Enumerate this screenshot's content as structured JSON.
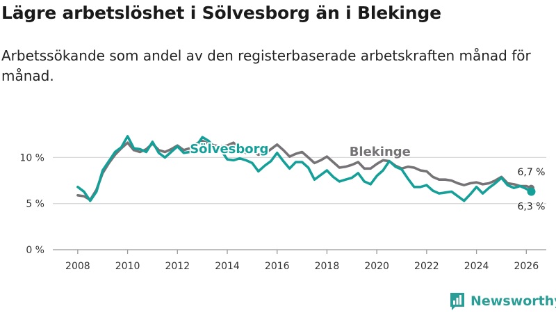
{
  "colors": {
    "solvesborg": "#14a098",
    "blekinge": "#757375",
    "grid": "#d9d9d9",
    "axis": "#999999"
  },
  "brand": {
    "name": "Newsworthy"
  },
  "chart_data": {
    "type": "line",
    "title": "Lägre arbetslöshet i Sölvesborg än i Blekinge",
    "subtitle": "Arbetssökande som andel av den registerbaserade arbetskraften månad för månad.",
    "xlabel": "",
    "ylabel": "",
    "xlim": [
      2007.0,
      2026.8
    ],
    "ylim": [
      0,
      13.5
    ],
    "x_ticks": [
      2008,
      2010,
      2012,
      2014,
      2016,
      2018,
      2020,
      2022,
      2024,
      2026
    ],
    "x_tick_labels": [
      "2008",
      "2010",
      "2012",
      "2014",
      "2016",
      "2018",
      "2020",
      "2022",
      "2024",
      "2026"
    ],
    "y_ticks": [
      0,
      5,
      10
    ],
    "y_tick_labels": [
      "0 %",
      "5 %",
      "10 %"
    ],
    "grid": true,
    "series": [
      {
        "name": "Blekinge",
        "label": "Blekinge",
        "end_label": "6,7 %",
        "x": [
          2008.0,
          2008.25,
          2008.5,
          2008.75,
          2009.0,
          2009.25,
          2009.5,
          2009.75,
          2010.0,
          2010.25,
          2010.5,
          2010.75,
          2011.0,
          2011.25,
          2011.5,
          2011.75,
          2012.0,
          2012.25,
          2012.5,
          2012.75,
          2013.0,
          2013.25,
          2013.5,
          2013.75,
          2014.0,
          2014.25,
          2014.5,
          2014.75,
          2015.0,
          2015.25,
          2015.5,
          2015.75,
          2016.0,
          2016.25,
          2016.5,
          2016.75,
          2017.0,
          2017.25,
          2017.5,
          2017.75,
          2018.0,
          2018.25,
          2018.5,
          2018.75,
          2019.0,
          2019.25,
          2019.5,
          2019.75,
          2020.0,
          2020.25,
          2020.5,
          2020.75,
          2021.0,
          2021.25,
          2021.5,
          2021.75,
          2022.0,
          2022.25,
          2022.5,
          2022.75,
          2023.0,
          2023.25,
          2023.5,
          2023.75,
          2024.0,
          2024.25,
          2024.5,
          2024.75,
          2025.0,
          2025.25,
          2025.5,
          2025.75,
          2026.0,
          2026.2
        ],
        "values": [
          5.9,
          5.8,
          5.4,
          6.5,
          8.3,
          9.4,
          10.3,
          11.0,
          11.6,
          10.8,
          10.6,
          10.9,
          11.5,
          10.8,
          10.6,
          10.9,
          11.3,
          10.8,
          11.0,
          11.5,
          11.8,
          11.5,
          11.3,
          11.2,
          11.3,
          11.6,
          10.9,
          10.5,
          10.7,
          10.3,
          10.4,
          10.9,
          11.4,
          10.8,
          10.1,
          10.4,
          10.6,
          10.0,
          9.4,
          9.7,
          10.1,
          9.5,
          8.9,
          9.0,
          9.2,
          9.5,
          8.8,
          8.8,
          9.3,
          9.7,
          9.6,
          9.1,
          8.8,
          9.0,
          8.9,
          8.6,
          8.5,
          7.9,
          7.6,
          7.6,
          7.5,
          7.2,
          7.0,
          7.2,
          7.3,
          7.1,
          7.2,
          7.5,
          7.9,
          7.2,
          7.1,
          6.9,
          6.9,
          6.7
        ]
      },
      {
        "name": "Sölvesborg",
        "label": "Sölvesborg",
        "end_label": "6,3 %",
        "x": [
          2008.0,
          2008.25,
          2008.5,
          2008.75,
          2009.0,
          2009.25,
          2009.5,
          2009.75,
          2010.0,
          2010.25,
          2010.5,
          2010.75,
          2011.0,
          2011.25,
          2011.5,
          2011.75,
          2012.0,
          2012.25,
          2012.5,
          2012.75,
          2013.0,
          2013.25,
          2013.5,
          2013.75,
          2014.0,
          2014.25,
          2014.5,
          2014.75,
          2015.0,
          2015.25,
          2015.5,
          2015.75,
          2016.0,
          2016.25,
          2016.5,
          2016.75,
          2017.0,
          2017.25,
          2017.5,
          2017.75,
          2018.0,
          2018.25,
          2018.5,
          2018.75,
          2019.0,
          2019.25,
          2019.5,
          2019.75,
          2020.0,
          2020.25,
          2020.5,
          2020.75,
          2021.0,
          2021.25,
          2021.5,
          2021.75,
          2022.0,
          2022.25,
          2022.5,
          2022.75,
          2023.0,
          2023.25,
          2023.5,
          2023.75,
          2024.0,
          2024.25,
          2024.5,
          2024.75,
          2025.0,
          2025.25,
          2025.5,
          2025.75,
          2026.0,
          2026.2
        ],
        "values": [
          6.8,
          6.3,
          5.3,
          6.3,
          8.6,
          9.6,
          10.6,
          11.1,
          12.3,
          11.0,
          10.9,
          10.6,
          11.7,
          10.5,
          10.0,
          10.6,
          11.2,
          10.5,
          10.6,
          11.2,
          12.2,
          11.8,
          11.0,
          10.8,
          9.8,
          9.7,
          9.9,
          9.7,
          9.4,
          8.5,
          9.1,
          9.6,
          10.5,
          9.6,
          8.8,
          9.5,
          9.5,
          8.9,
          7.6,
          8.1,
          8.6,
          7.9,
          7.4,
          7.6,
          7.8,
          8.3,
          7.4,
          7.1,
          8.0,
          8.6,
          9.6,
          9.0,
          8.7,
          7.7,
          6.8,
          6.8,
          7.0,
          6.4,
          6.1,
          6.2,
          6.3,
          5.8,
          5.3,
          6.0,
          6.8,
          6.1,
          6.7,
          7.2,
          7.8,
          7.0,
          6.7,
          6.9,
          6.6,
          6.3
        ]
      }
    ]
  }
}
